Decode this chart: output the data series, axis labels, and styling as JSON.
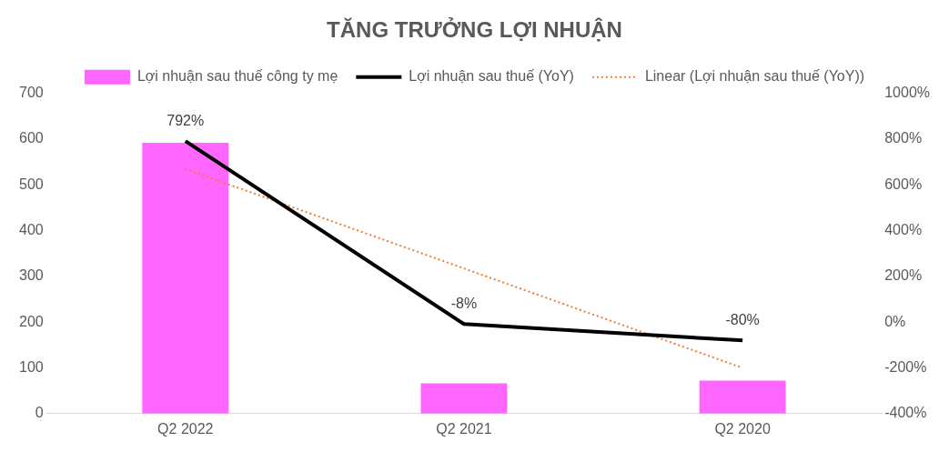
{
  "chart_data": {
    "type": "bar",
    "title": "TĂNG TRƯỞNG LỢI NHUẬN",
    "categories": [
      "Q2 2022",
      "Q2 2021",
      "Q2 2020"
    ],
    "series": [
      {
        "name": "Lợi nhuận sau thuế công ty mẹ",
        "color": "#ff66ff",
        "values": [
          592,
          66,
          72
        ]
      },
      {
        "name": "Lợi nhuận sau thuế (YoY)",
        "type": "line",
        "axis": "y2",
        "color": "#000000",
        "values": [
          792,
          -8,
          -80
        ],
        "value_labels": [
          "792%",
          "-8%",
          "-80%"
        ],
        "line_style": "solid"
      },
      {
        "name": "Linear (Lợi nhuận sau thuế (YoY))",
        "type": "line",
        "axis": "y2",
        "color": "#ed7d31",
        "values": [
          670,
          235,
          -200
        ],
        "line_style": "dotted"
      }
    ],
    "ylim": [
      0,
      700
    ],
    "yticks": [
      0,
      100,
      200,
      300,
      400,
      500,
      600,
      700
    ],
    "y2lim": [
      -400,
      1000
    ],
    "y2ticks": [
      {
        "value": -400,
        "label": "-400%"
      },
      {
        "value": -200,
        "label": "-200%"
      },
      {
        "value": 0,
        "label": "0%"
      },
      {
        "value": 200,
        "label": "200%"
      },
      {
        "value": 400,
        "label": "400%"
      },
      {
        "value": 600,
        "label": "600%"
      },
      {
        "value": 800,
        "label": "800%"
      },
      {
        "value": 1000,
        "label": "1000%"
      }
    ],
    "grid": false,
    "legend": "top",
    "marker": "none"
  }
}
